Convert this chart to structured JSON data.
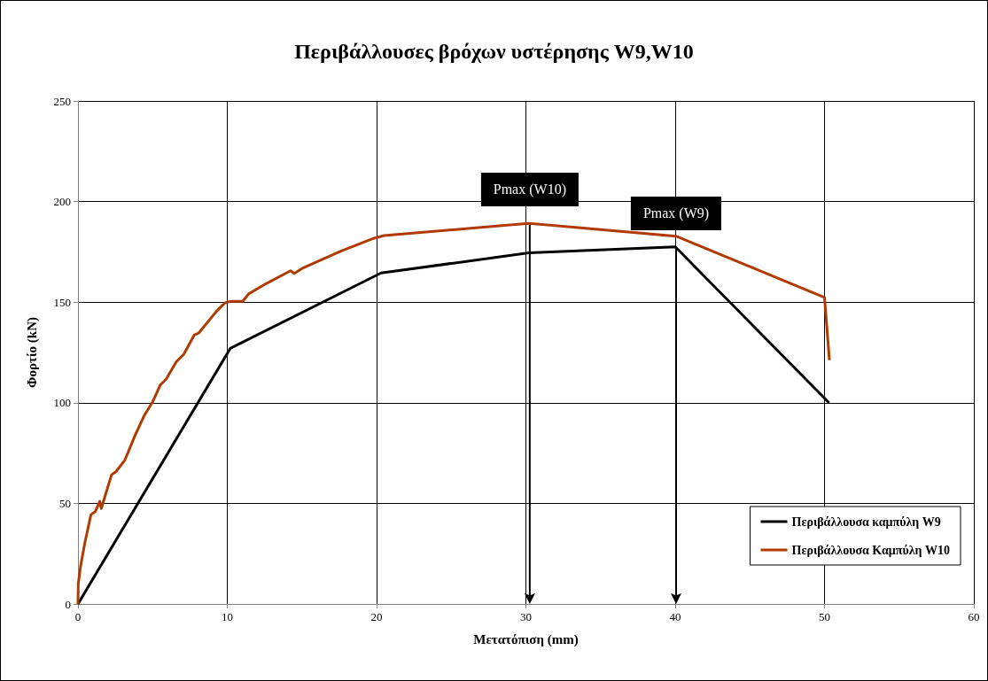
{
  "chart_data": {
    "type": "line",
    "title": "Περιβάλλουσες βρόχων υστέρησης W9,W10",
    "xlabel": "Μετατόπιση (mm)",
    "ylabel": "Φορτίο (kN)",
    "xlim": [
      0,
      60
    ],
    "xticks": [
      0,
      10,
      20,
      30,
      40,
      50,
      60
    ],
    "ylim": [
      0,
      250
    ],
    "yticks": [
      0,
      50,
      100,
      150,
      200,
      250
    ],
    "grid": true,
    "legend": "bottom right",
    "marker": "none",
    "series": [
      {
        "name": "Περιβάλλουσα καμπύλη W9",
        "color": "#000000",
        "x": [
          0,
          10.2,
          20.3,
          30.2,
          40,
          50.3
        ],
        "values": [
          0,
          127,
          164.5,
          174.5,
          177.5,
          100
        ]
      },
      {
        "name": "Περιβάλλουσα Καμπύλη W10",
        "color": "#b03a00",
        "x": [
          0,
          0.02,
          0.18,
          0.47,
          0.87,
          1.16,
          1.46,
          1.56,
          2.25,
          2.55,
          3.14,
          3.83,
          4.42,
          5.02,
          5.51,
          5.9,
          6.6,
          7.09,
          7.78,
          8.08,
          9.26,
          9.85,
          10.25,
          11.04,
          11.43,
          12.6,
          14.24,
          14.49,
          15.1,
          17.6,
          19.84,
          20.5,
          30.2,
          40.05,
          50.0,
          50.33
        ],
        "values": [
          0,
          10,
          19,
          30.7,
          44.4,
          45.9,
          51,
          47.4,
          64.2,
          65.8,
          71.5,
          83.9,
          93.4,
          100.7,
          108.8,
          111.7,
          120.5,
          124.1,
          133.6,
          134.6,
          145.3,
          149.7,
          150.4,
          150.4,
          154.1,
          159.2,
          165.6,
          164.3,
          167.1,
          175.3,
          181.8,
          183.1,
          189.2,
          182.8,
          152.3,
          121.2
        ]
      }
    ],
    "annotations": [
      {
        "text": "Pmax (W10)",
        "x": 30.2,
        "y": 189.2
      },
      {
        "text": "Pmax (W9)",
        "x": 40,
        "y": 177.5
      }
    ]
  }
}
